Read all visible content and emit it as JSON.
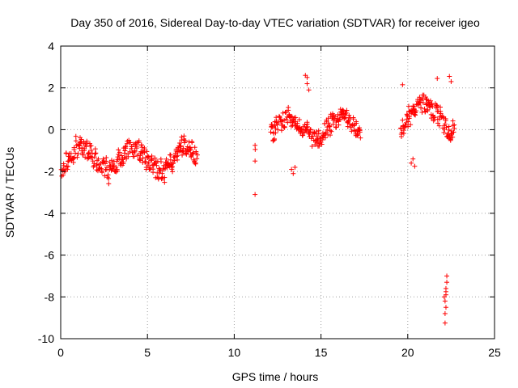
{
  "chart_data": {
    "type": "scatter",
    "title": "Day 350 of 2016, Sidereal Day-to-day VTEC variation (SDTVAR) for receiver igeo",
    "xlabel": "GPS time / hours",
    "ylabel": "SDTVAR / TECUs",
    "xlim": [
      0,
      25
    ],
    "ylim": [
      -10,
      4
    ],
    "xticks": [
      0,
      5,
      10,
      15,
      20,
      25
    ],
    "yticks": [
      -10,
      -8,
      -6,
      -4,
      -2,
      0,
      2,
      4
    ],
    "xtick_labels": [
      "0",
      "5",
      "10",
      "15",
      "20",
      "25"
    ],
    "ytick_labels": [
      "-10",
      "-8",
      "-6",
      "-4",
      "-2",
      "0",
      "2",
      "4"
    ],
    "grid": true,
    "marker": "+",
    "color": "#ff0000",
    "series": [
      {
        "name": "SDTVAR",
        "segments": [
          {
            "t0": 0.0,
            "t1": 7.9,
            "step": 0.035,
            "center": -1.4,
            "amp": 0.55,
            "noise": 0.45
          },
          {
            "t0": 11.2,
            "t1": 11.2,
            "step": 0.1,
            "center": -1.3,
            "amp": 0.3,
            "noise": 0.3
          },
          {
            "t0": 12.1,
            "t1": 17.3,
            "step": 0.035,
            "center": 0.1,
            "amp": 0.5,
            "noise": 0.45
          },
          {
            "t0": 19.6,
            "t1": 22.7,
            "step": 0.035,
            "center": 0.6,
            "amp": 0.6,
            "noise": 0.5
          }
        ],
        "points": [
          [
            11.2,
            -3.1
          ],
          [
            11.2,
            -0.75
          ],
          [
            11.2,
            -1.5
          ],
          [
            14.2,
            2.5
          ],
          [
            14.2,
            2.2
          ],
          [
            14.3,
            1.9
          ],
          [
            14.1,
            2.6
          ],
          [
            19.7,
            2.15
          ],
          [
            21.7,
            2.45
          ],
          [
            22.4,
            2.55
          ],
          [
            22.5,
            2.3
          ],
          [
            13.4,
            -2.1
          ],
          [
            13.5,
            -1.8
          ],
          [
            13.3,
            -1.9
          ],
          [
            20.2,
            -1.6
          ],
          [
            20.3,
            -1.4
          ],
          [
            20.4,
            -1.75
          ],
          [
            22.15,
            -9.25
          ],
          [
            22.15,
            -8.8
          ],
          [
            22.2,
            -8.5
          ],
          [
            22.15,
            -8.2
          ],
          [
            22.2,
            -7.9
          ],
          [
            22.2,
            -7.6
          ],
          [
            22.25,
            -7.3
          ],
          [
            22.25,
            -7.0
          ],
          [
            22.1,
            -8.0
          ],
          [
            22.2,
            -7.75
          ]
        ]
      }
    ]
  }
}
